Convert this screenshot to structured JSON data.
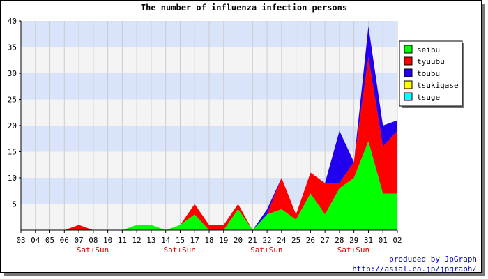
{
  "chart_data": {
    "type": "area",
    "title": "The number of influenza infection persons",
    "xlabel": "",
    "ylabel": "",
    "stacked": true,
    "ylim": [
      0,
      40
    ],
    "yticks": [
      5,
      10,
      15,
      20,
      25,
      30,
      35,
      40
    ],
    "categories": [
      "03",
      "04",
      "05",
      "06",
      "07",
      "08",
      "10",
      "11",
      "12",
      "13",
      "14",
      "15",
      "17",
      "18",
      "19",
      "20",
      "21",
      "22",
      "24",
      "25",
      "26",
      "27",
      "28",
      "29",
      "31",
      "01",
      "02"
    ],
    "weekend_label": "Sat+Sun",
    "weekend_under": [
      "07",
      "14",
      "21",
      "28"
    ],
    "grid": true,
    "legend_position": "right",
    "series": [
      {
        "name": "seibu",
        "color": "#00ff00",
        "values": [
          0,
          0,
          0,
          0,
          0,
          0,
          0,
          0,
          1,
          1,
          0,
          1,
          3,
          0,
          0,
          4,
          0,
          3,
          4,
          2,
          7,
          3,
          8,
          10,
          17,
          7,
          7
        ]
      },
      {
        "name": "tyuubu",
        "color": "#ff0000",
        "values": [
          0,
          0,
          0,
          0,
          1,
          0,
          0,
          0,
          0,
          0,
          0,
          0,
          2,
          1,
          1,
          1,
          0,
          0,
          6,
          1,
          4,
          6,
          1,
          3,
          16,
          9,
          12
        ]
      },
      {
        "name": "toubu",
        "color": "#2200ee",
        "values": [
          0,
          0,
          0,
          0,
          0,
          0,
          0,
          0,
          0,
          0,
          0,
          0,
          0,
          0,
          0,
          0,
          0,
          1,
          0,
          0,
          0,
          0,
          10,
          0,
          6,
          4,
          2
        ]
      },
      {
        "name": "tsukigase",
        "color": "#ffff00",
        "values": [
          0,
          0,
          0,
          0,
          0,
          0,
          0,
          0,
          0,
          0,
          0,
          0,
          0,
          0,
          0,
          0,
          0,
          0,
          0,
          0,
          0,
          0,
          0,
          0,
          0,
          0,
          0
        ]
      },
      {
        "name": "tsuge",
        "color": "#00ffff",
        "values": [
          0,
          0,
          0,
          0,
          0,
          0,
          0,
          0,
          0,
          0,
          0,
          0,
          0,
          0,
          0,
          0,
          0,
          0,
          0,
          0,
          0,
          0,
          0,
          0,
          0,
          0,
          0
        ]
      }
    ]
  },
  "credits": {
    "line1": "produced by JpGraph",
    "line2": "http://asial.co.jp/jpgraph/"
  }
}
